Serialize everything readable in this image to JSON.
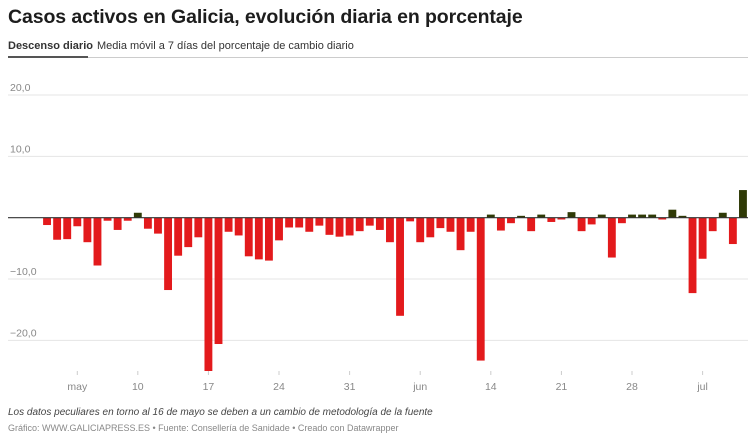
{
  "tabs": [
    {
      "label": "Descenso diario",
      "active": true
    },
    {
      "label": "Media móvil a 7 días del porcentaje de cambio diario",
      "active": false
    }
  ],
  "chart_data": {
    "type": "bar",
    "title": "Casos activos en Galicia, evolución diaria en porcentaje",
    "xlabel": "",
    "ylabel": "",
    "ylim": [
      -25,
      20
    ],
    "y_ticks": [
      20,
      10,
      0,
      -10,
      -20
    ],
    "y_tick_labels": [
      "20,0",
      "10,0",
      "",
      "−10,0",
      "−20,0"
    ],
    "x_tick_labels": [
      {
        "label": "may",
        "day": 4
      },
      {
        "label": "10",
        "day": 10
      },
      {
        "label": "17",
        "day": 17
      },
      {
        "label": "24",
        "day": 24
      },
      {
        "label": "31",
        "day": 31
      },
      {
        "label": "jun",
        "day": 38
      },
      {
        "label": "14",
        "day": 45
      },
      {
        "label": "21",
        "day": 52
      },
      {
        "label": "28",
        "day": 59
      },
      {
        "label": "jul",
        "day": 66
      }
    ],
    "grid": true,
    "colors": {
      "negative": "#e31a1c",
      "positive": "#2f3a06",
      "grid": "#e5e5e5",
      "zero_line": "#333333"
    },
    "values": [
      -1.2,
      -3.6,
      -3.5,
      -1.4,
      -4.0,
      -7.8,
      -0.5,
      -2.0,
      -0.5,
      0.8,
      -1.8,
      -2.6,
      -11.8,
      -6.2,
      -4.8,
      -3.2,
      -25.0,
      -20.6,
      -2.3,
      -2.9,
      -6.3,
      -6.8,
      -7.0,
      -3.7,
      -1.6,
      -1.6,
      -2.3,
      -1.3,
      -2.8,
      -3.1,
      -2.9,
      -2.2,
      -1.3,
      -2.0,
      -4.0,
      -16.0,
      -0.6,
      -4.0,
      -3.2,
      -1.7,
      -2.3,
      -5.3,
      -2.3,
      -23.3,
      0.5,
      -2.1,
      -0.9,
      0.3,
      -2.2,
      0.5,
      -0.7,
      -0.3,
      0.9,
      -2.2,
      -1.1,
      0.5,
      -6.5,
      -0.9,
      0.5,
      0.5,
      0.5,
      -0.3,
      1.3,
      0.3,
      -12.3,
      -6.7,
      -2.2,
      0.8,
      -4.3,
      4.5
    ]
  },
  "footer": {
    "note": "Los datos peculiares en torno al 16 de mayo se deben a un cambio de metodología de la fuente",
    "credit": "Gráfico: WWW.GALICIAPRESS.ES • Fuente: Consellería de Sanidade • Creado con Datawrapper"
  }
}
